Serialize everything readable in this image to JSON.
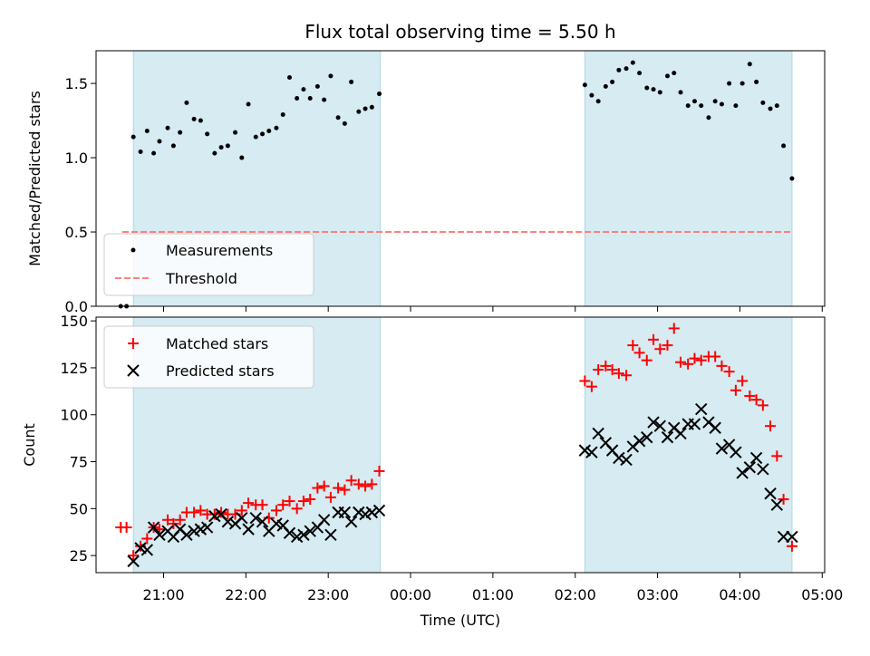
{
  "chart_data": [
    {
      "type": "scatter",
      "title": "Flux total observing time = 5.50 h",
      "ylabel": "Matched/Predicted stars",
      "ylim": [
        0,
        1.72
      ],
      "yticks": [
        "0.0",
        "0.5",
        "1.0",
        "1.5"
      ],
      "shaded_intervals_hours": [
        [
          20.633,
          23.633
        ],
        [
          26.117,
          28.633
        ]
      ],
      "threshold": {
        "name": "Threshold",
        "value": 0.5,
        "x_range_hours": [
          20.5,
          28.633
        ],
        "color": "#ff7f7f"
      },
      "series": [
        {
          "name": "Measurements",
          "marker": "dot",
          "color": "#000000",
          "x": [
            20.48,
            20.55,
            20.633,
            20.72,
            20.8,
            20.88,
            20.95,
            21.05,
            21.12,
            21.2,
            21.28,
            21.37,
            21.45,
            21.53,
            21.62,
            21.7,
            21.78,
            21.87,
            21.95,
            22.03,
            22.12,
            22.2,
            22.28,
            22.37,
            22.45,
            22.53,
            22.62,
            22.7,
            22.78,
            22.87,
            22.95,
            23.03,
            23.12,
            23.2,
            23.28,
            23.37,
            23.45,
            23.53,
            23.62,
            26.117,
            26.2,
            26.28,
            26.37,
            26.45,
            26.53,
            26.62,
            26.7,
            26.78,
            26.87,
            26.95,
            27.03,
            27.12,
            27.2,
            27.28,
            27.37,
            27.45,
            27.53,
            27.62,
            27.7,
            27.78,
            27.87,
            27.95,
            28.03,
            28.12,
            28.2,
            28.28,
            28.37,
            28.45,
            28.53,
            28.633
          ],
          "y": [
            0.0,
            0.0,
            1.14,
            1.04,
            1.18,
            1.03,
            1.11,
            1.2,
            1.08,
            1.17,
            1.37,
            1.26,
            1.25,
            1.16,
            1.03,
            1.07,
            1.08,
            1.17,
            1.0,
            1.36,
            1.14,
            1.16,
            1.18,
            1.2,
            1.29,
            1.54,
            1.4,
            1.46,
            1.4,
            1.48,
            1.39,
            1.55,
            1.27,
            1.23,
            1.51,
            1.31,
            1.33,
            1.34,
            1.43,
            1.49,
            1.42,
            1.38,
            1.48,
            1.51,
            1.59,
            1.6,
            1.64,
            1.57,
            1.47,
            1.46,
            1.44,
            1.55,
            1.57,
            1.44,
            1.35,
            1.38,
            1.35,
            1.27,
            1.38,
            1.36,
            1.5,
            1.35,
            1.5,
            1.63,
            1.51,
            1.37,
            1.33,
            1.35,
            1.08,
            0.86
          ]
        }
      ]
    },
    {
      "type": "scatter",
      "xlabel": "Time (UTC)",
      "ylabel": "Count",
      "ylim": [
        15.9,
        152
      ],
      "yticks": [
        "25",
        "50",
        "75",
        "100",
        "125",
        "150"
      ],
      "xticks": [
        "21:00",
        "22:00",
        "23:00",
        "00:00",
        "01:00",
        "02:00",
        "03:00",
        "04:00",
        "05:00"
      ],
      "xlim_hours": [
        20.18,
        29.03
      ],
      "shaded_intervals_hours": [
        [
          20.633,
          23.633
        ],
        [
          26.117,
          28.633
        ]
      ],
      "series": [
        {
          "name": "Matched stars",
          "marker": "plus",
          "color": "#ff0000",
          "x": [
            20.48,
            20.55,
            20.633,
            20.72,
            20.8,
            20.88,
            20.95,
            21.05,
            21.12,
            21.2,
            21.28,
            21.37,
            21.45,
            21.53,
            21.62,
            21.7,
            21.78,
            21.87,
            21.95,
            22.03,
            22.12,
            22.2,
            22.28,
            22.37,
            22.45,
            22.53,
            22.62,
            22.7,
            22.78,
            22.87,
            22.95,
            23.03,
            23.12,
            23.2,
            23.28,
            23.37,
            23.45,
            23.53,
            23.62,
            26.117,
            26.2,
            26.28,
            26.37,
            26.45,
            26.53,
            26.62,
            26.7,
            26.78,
            26.87,
            26.95,
            27.03,
            27.12,
            27.2,
            27.28,
            27.37,
            27.45,
            27.53,
            27.62,
            27.7,
            27.78,
            27.87,
            27.95,
            28.03,
            28.12,
            28.2,
            28.28,
            28.37,
            28.45,
            28.53,
            28.633
          ],
          "y": [
            40,
            40,
            25,
            30,
            34,
            40,
            39,
            44,
            42,
            44,
            48,
            48,
            49,
            47,
            47,
            48,
            47,
            47,
            49,
            53,
            52,
            52,
            45,
            49,
            52,
            54,
            50,
            54,
            55,
            61,
            62,
            56,
            61,
            60,
            65,
            63,
            62,
            63,
            70,
            118,
            115,
            124,
            126,
            124,
            122,
            121,
            137,
            133,
            129,
            140,
            135,
            137,
            146,
            128,
            127,
            130,
            129,
            131,
            131,
            126,
            123,
            113,
            118,
            110,
            108,
            105,
            94,
            78,
            55,
            30
          ]
        },
        {
          "name": "Predicted stars",
          "marker": "x",
          "color": "#000000",
          "x": [
            20.633,
            20.72,
            20.8,
            20.88,
            20.95,
            21.05,
            21.12,
            21.2,
            21.28,
            21.37,
            21.45,
            21.53,
            21.62,
            21.7,
            21.78,
            21.87,
            21.95,
            22.03,
            22.12,
            22.2,
            22.28,
            22.37,
            22.45,
            22.53,
            22.62,
            22.7,
            22.78,
            22.87,
            22.95,
            23.03,
            23.12,
            23.2,
            23.28,
            23.37,
            23.45,
            23.53,
            23.62,
            26.117,
            26.2,
            26.28,
            26.37,
            26.45,
            26.53,
            26.62,
            26.7,
            26.78,
            26.87,
            26.95,
            27.03,
            27.12,
            27.2,
            27.28,
            27.37,
            27.45,
            27.53,
            27.62,
            27.7,
            27.78,
            27.87,
            27.95,
            28.03,
            28.12,
            28.2,
            28.28,
            28.37,
            28.45,
            28.53,
            28.633
          ],
          "y": [
            22,
            29,
            28,
            40,
            36,
            38,
            35,
            39,
            36,
            38,
            39,
            40,
            46,
            47,
            43,
            42,
            45,
            39,
            45,
            43,
            38,
            42,
            41,
            37,
            35,
            36,
            38,
            40,
            44,
            36,
            48,
            48,
            43,
            48,
            47,
            48,
            49,
            81,
            80,
            90,
            85,
            81,
            77,
            76,
            83,
            86,
            88,
            96,
            94,
            88,
            93,
            90,
            95,
            95,
            103,
            96,
            93,
            82,
            84,
            80,
            69,
            72,
            77,
            71,
            58,
            52,
            35,
            35
          ]
        }
      ]
    }
  ]
}
